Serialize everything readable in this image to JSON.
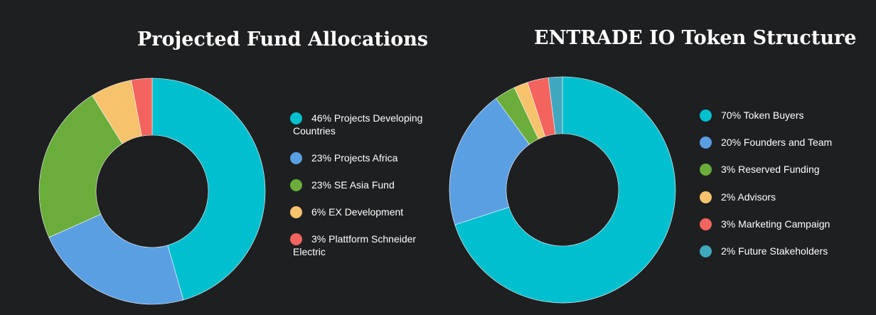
{
  "colors": {
    "background": "#1e1f21",
    "cyan": "#00bfcf",
    "blue": "#5b9fe3",
    "green": "#6aad3b",
    "orange": "#f6c26b",
    "red": "#f4645f",
    "teal": "#3fa8bf"
  },
  "chart_data": [
    {
      "type": "pie",
      "title": "Projected Fund Allocations",
      "donut": true,
      "legend_position": "right",
      "slices": [
        {
          "label": "46% Projects Developing Countries",
          "value": 46,
          "color": "#00bfcf"
        },
        {
          "label": "23% Projects Africa",
          "value": 23,
          "color": "#5b9fe3"
        },
        {
          "label": "23% SE Asia Fund",
          "value": 23,
          "color": "#6aad3b"
        },
        {
          "label": "6% EX Development",
          "value": 6,
          "color": "#f6c26b"
        },
        {
          "label": "3% Plattform Schneider Electric",
          "value": 3,
          "color": "#f4645f"
        }
      ]
    },
    {
      "type": "pie",
      "title": "ENTRADE IO Token Structure",
      "donut": true,
      "legend_position": "right",
      "slices": [
        {
          "label": "70% Token Buyers",
          "value": 70,
          "color": "#00bfcf"
        },
        {
          "label": "20% Founders and Team",
          "value": 20,
          "color": "#5b9fe3"
        },
        {
          "label": "3% Reserved Funding",
          "value": 3,
          "color": "#6aad3b"
        },
        {
          "label": "2% Advisors",
          "value": 2,
          "color": "#f6c26b"
        },
        {
          "label": "3% Marketing Campaign",
          "value": 3,
          "color": "#f4645f"
        },
        {
          "label": "2% Future Stakeholders",
          "value": 2,
          "color": "#3fa8bf"
        }
      ]
    }
  ]
}
